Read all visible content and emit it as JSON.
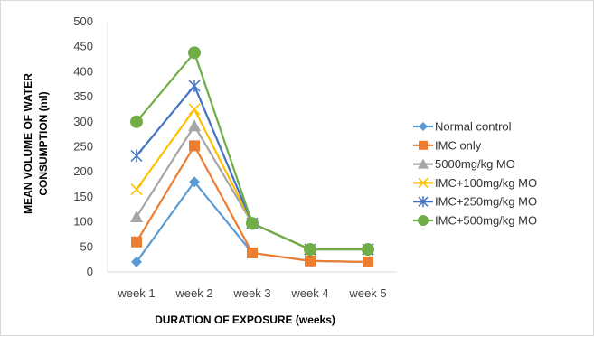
{
  "chart_data": {
    "type": "line",
    "title": "",
    "xlabel": "DURATION OF EXPOSURE (weeks)",
    "ylabel_line1": "MEAN VOLUME OF WATER",
    "ylabel_line2": "CONSUMPTION (ml)",
    "categories": [
      "week 1",
      "week 2",
      "week 3",
      "week 4",
      "week 5"
    ],
    "ylim": [
      0,
      500
    ],
    "yticks": [
      0,
      50,
      100,
      150,
      200,
      250,
      300,
      350,
      400,
      450,
      500
    ],
    "grid": false,
    "legend_position": "right",
    "series": [
      {
        "name": "Normal control",
        "marker": "diamond",
        "color": "#5b9bd5",
        "values": [
          20,
          180,
          38,
          22,
          20
        ]
      },
      {
        "name": "IMC only",
        "marker": "square",
        "color": "#ed7d31",
        "values": [
          60,
          252,
          38,
          22,
          20
        ]
      },
      {
        "name": "5000mg/kg MO",
        "marker": "triangle",
        "color": "#a5a5a5",
        "values": [
          110,
          292,
          97,
          45,
          45
        ]
      },
      {
        "name": "IMC+100mg/kg MO",
        "marker": "x",
        "color": "#ffc000",
        "values": [
          165,
          325,
          97,
          45,
          45
        ]
      },
      {
        "name": "IMC+250mg/kg MO",
        "marker": "star",
        "color": "#4472c4",
        "values": [
          232,
          372,
          97,
          45,
          45
        ]
      },
      {
        "name": "IMC+500mg/kg MO",
        "marker": "circle",
        "color": "#70ad47",
        "values": [
          300,
          438,
          97,
          45,
          45
        ]
      }
    ]
  }
}
